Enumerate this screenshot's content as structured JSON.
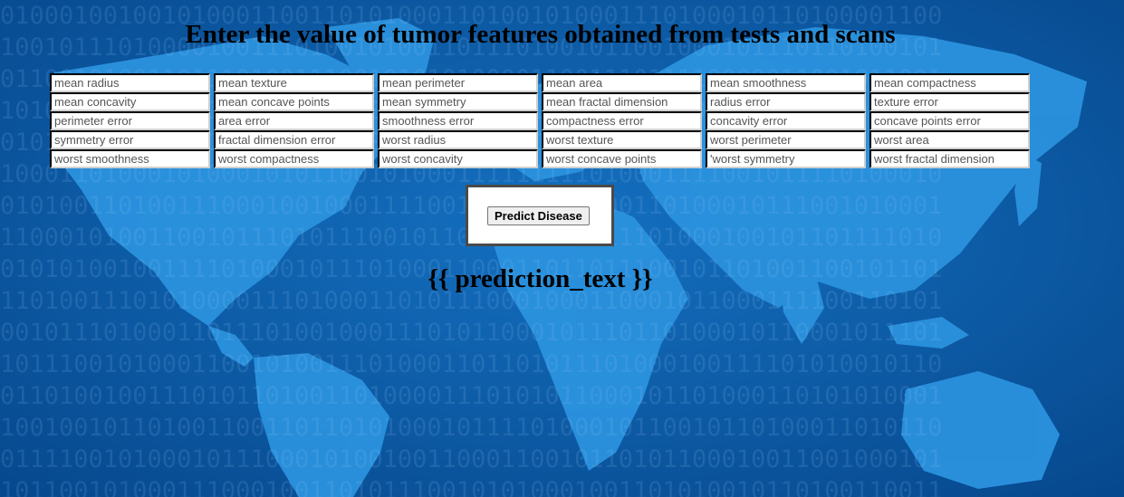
{
  "page": {
    "title": "Enter the value of tumor features obtained from tests and scans"
  },
  "features": [
    "mean radius",
    "mean texture",
    "mean perimeter",
    "mean area",
    "mean smoothness",
    "mean compactness",
    "mean concavity",
    "mean concave points",
    "mean symmetry",
    "mean fractal dimension",
    "radius error",
    "texture error",
    "perimeter error",
    "area error",
    "smoothness error",
    "compactness error",
    "concavity error",
    "concave points error",
    "symmetry error",
    "fractal dimension error",
    "worst radius",
    "worst texture",
    "worst perimeter",
    "worst area",
    "worst smoothness",
    "worst compactness",
    "worst concavity",
    "worst concave points",
    "'worst symmetry",
    "worst fractal dimension"
  ],
  "form": {
    "submit_label": "Predict Disease"
  },
  "result": {
    "prediction_text": "{{ prediction_text }}"
  },
  "colors": {
    "ocean": "#0a5aa6",
    "land": "#2a8fdc",
    "binary_overlay": "#8cbef0"
  }
}
